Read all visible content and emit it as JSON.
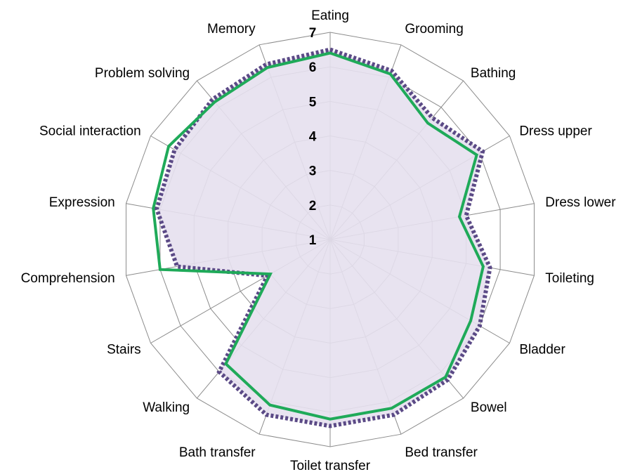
{
  "chart_data": {
    "type": "radar",
    "categories": [
      "Eating",
      "Grooming",
      "Bathing",
      "Dress upper",
      "Dress lower",
      "Toileting",
      "Bladder",
      "Bowel",
      "Bed transfer",
      "Toilet transfer",
      "Bath transfer",
      "Walking",
      "Stairs",
      "Comprehension",
      "Expression",
      "Social interaction",
      "Problem solving",
      "Memory"
    ],
    "rlim": [
      1,
      7
    ],
    "ticks": [
      "1",
      "2",
      "3",
      "4",
      "5",
      "6",
      "7"
    ],
    "grid": true,
    "legend": "none",
    "series": [
      {
        "style": "filled-dotted",
        "line_color": "#5b4a86",
        "fill_color": "#e6e0ee",
        "values": [
          6.5,
          6.2,
          5.6,
          6.1,
          5.0,
          5.7,
          6.0,
          6.3,
          6.4,
          6.4,
          6.4,
          6.0,
          3.1,
          5.5,
          6.1,
          6.2,
          6.3,
          6.4
        ]
      },
      {
        "style": "solid",
        "line_color": "#1faa59",
        "values": [
          6.4,
          6.1,
          5.4,
          5.9,
          4.8,
          5.5,
          5.7,
          6.2,
          6.2,
          6.2,
          6.1,
          5.7,
          3.0,
          6.0,
          6.2,
          6.4,
          6.2,
          6.3
        ]
      }
    ]
  }
}
